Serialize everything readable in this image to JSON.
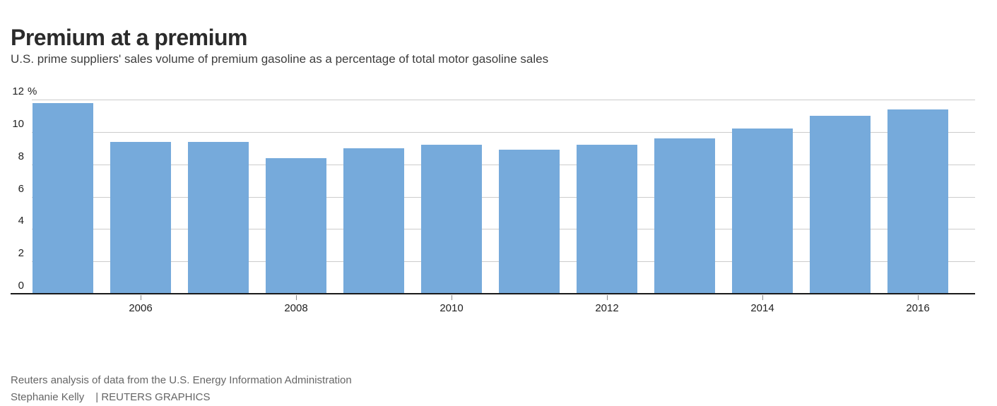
{
  "header": {
    "title": "Premium at a premium",
    "subtitle": "U.S. prime suppliers' sales volume of premium gasoline as a percentage of total motor gasoline sales"
  },
  "chart_data": {
    "type": "bar",
    "title": "Premium at a premium",
    "categories": [
      "2005",
      "2006",
      "2007",
      "2008",
      "2009",
      "2010",
      "2011",
      "2012",
      "2013",
      "2014",
      "2015",
      "2016"
    ],
    "values": [
      11.8,
      9.4,
      9.4,
      8.4,
      9.0,
      9.2,
      8.9,
      9.2,
      9.6,
      10.2,
      11.0,
      11.4
    ],
    "unit": "%",
    "xlabel": "",
    "ylabel": "",
    "ylim": [
      0,
      12
    ],
    "y_ticks": [
      0,
      2,
      4,
      6,
      8,
      10,
      12
    ],
    "y_top_tick_label": "12 %",
    "x_tick_labels": [
      "2006",
      "2008",
      "2010",
      "2012",
      "2014",
      "2016"
    ],
    "grid": "horizontal-gridlines",
    "legend": "none",
    "bar_color": "#76aadb",
    "gridline_color": "#cccccc",
    "axis_color": "#1a1a1a"
  },
  "footer": {
    "source": "Reuters analysis of data from the U.S. Energy Information Administration",
    "byline": "Stephanie Kelly",
    "credit": "| REUTERS GRAPHICS"
  }
}
